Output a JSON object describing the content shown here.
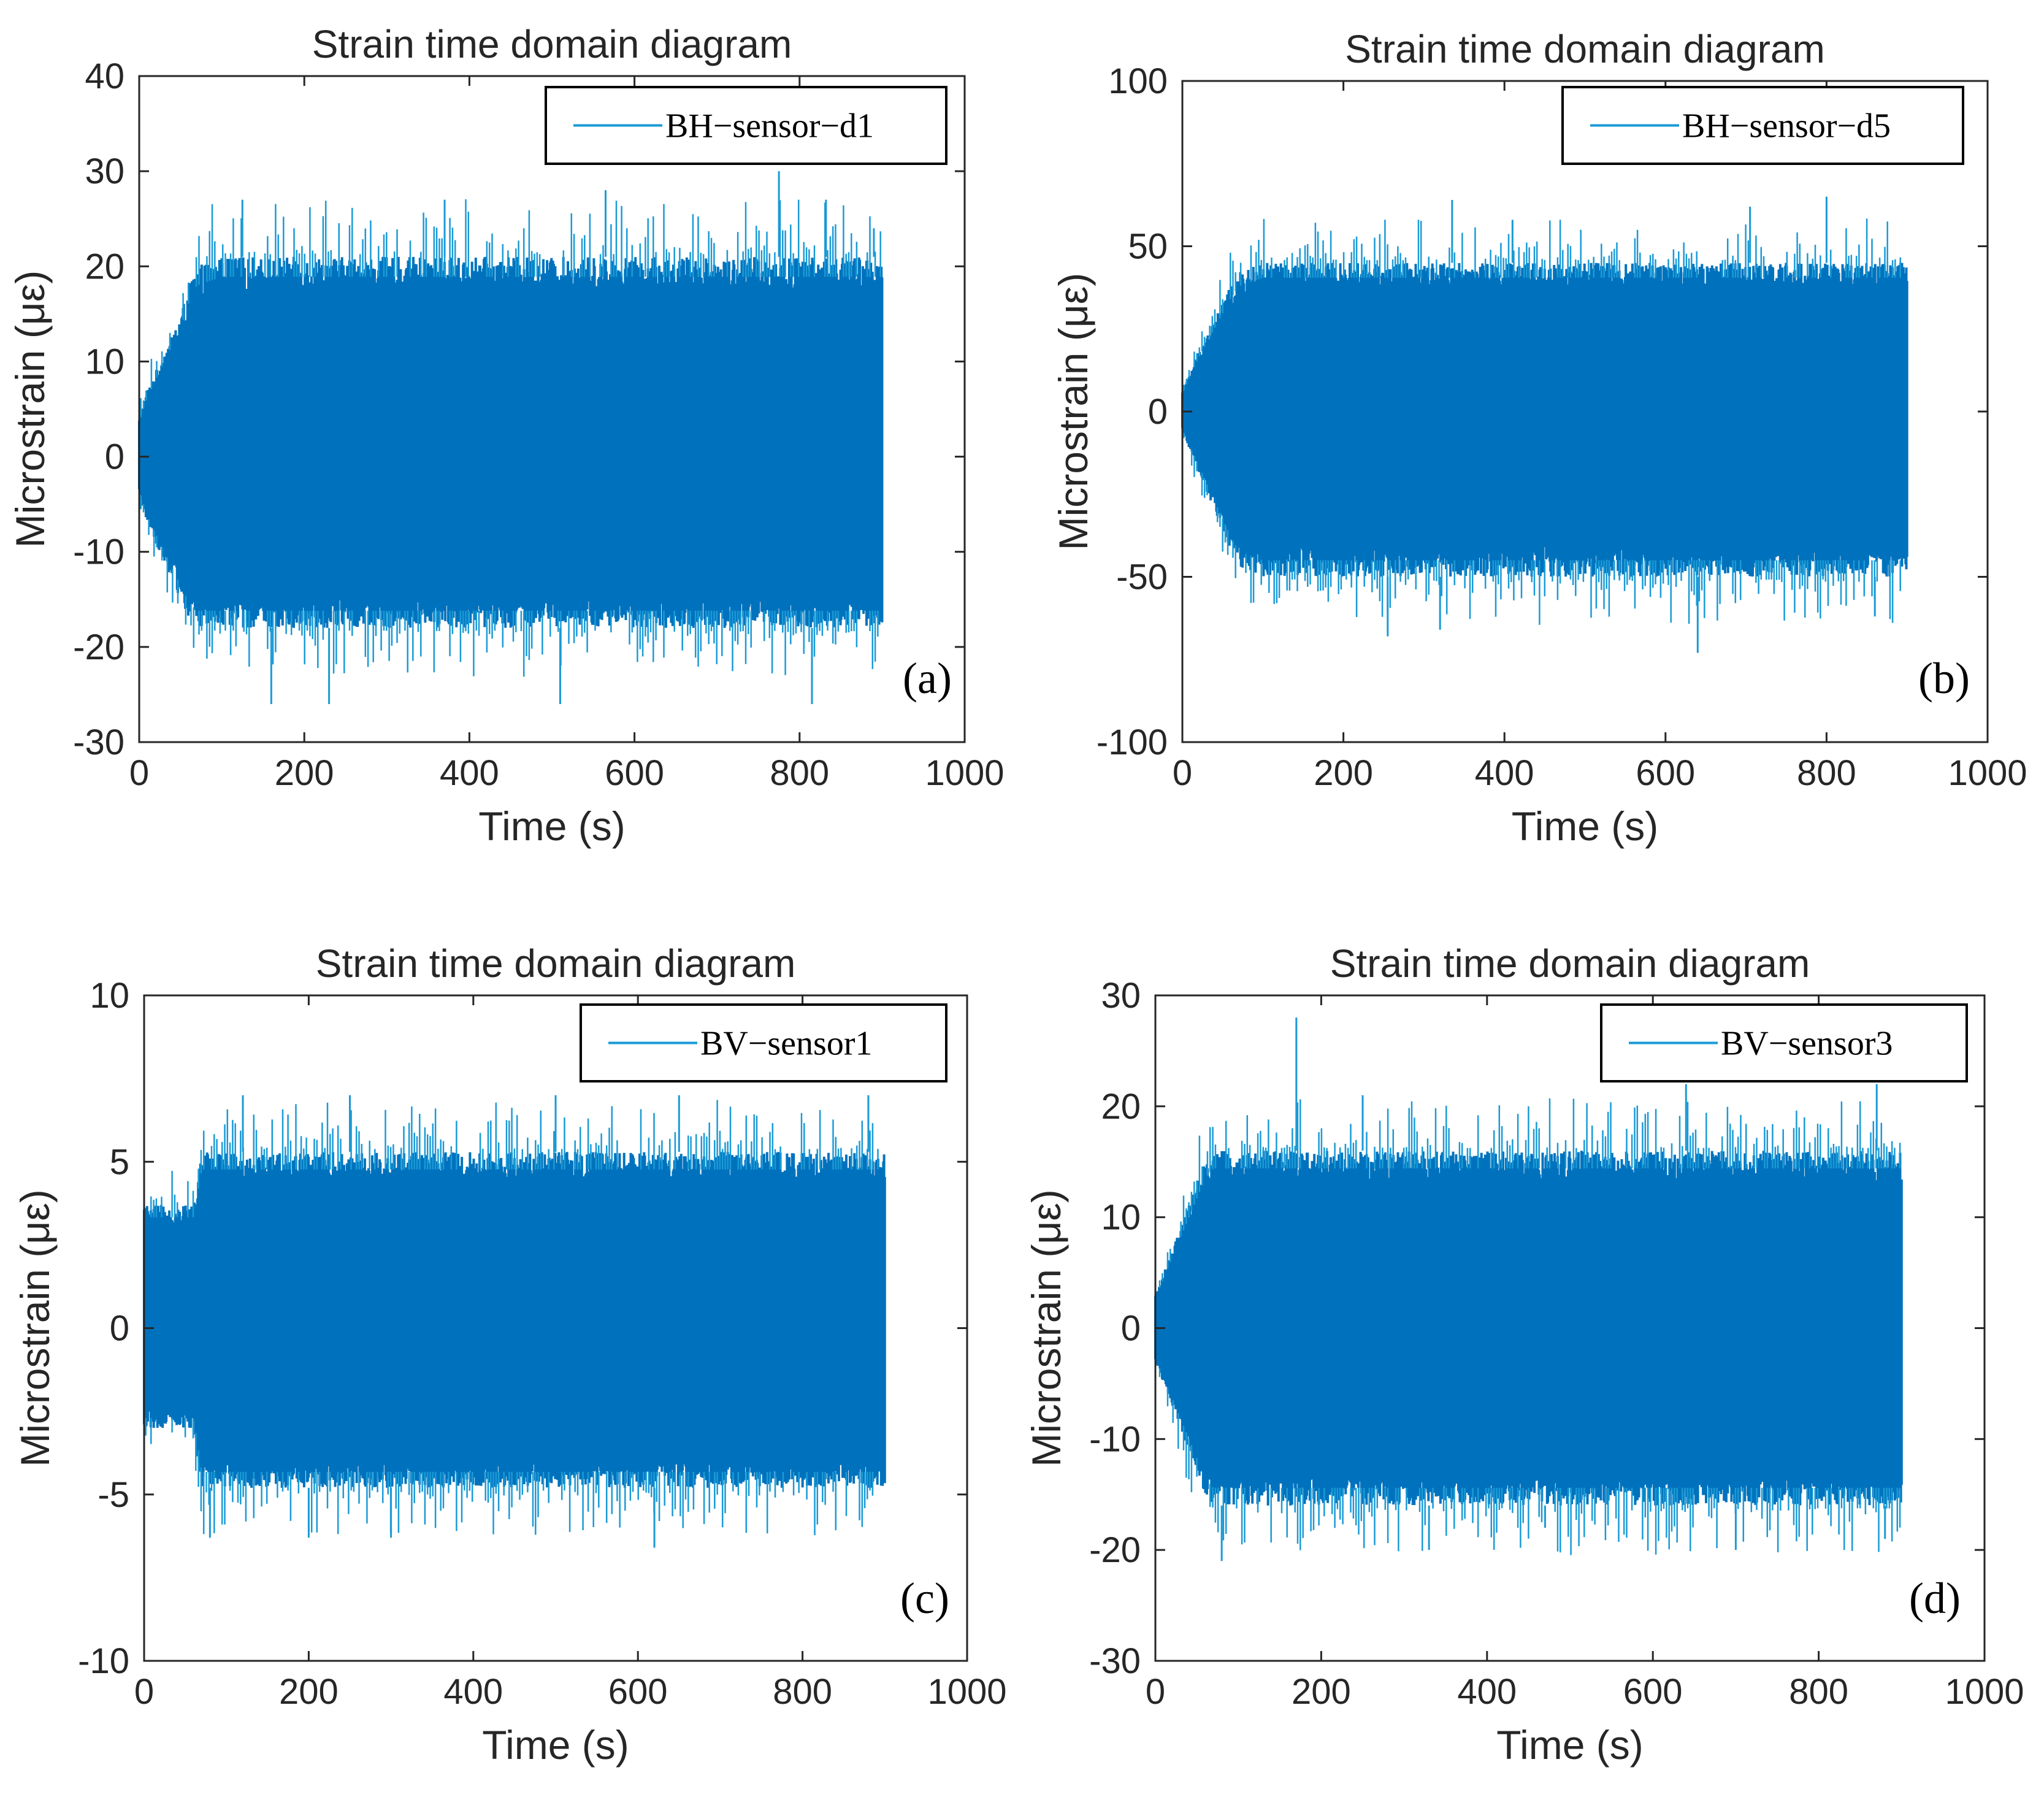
{
  "figure": {
    "colors": {
      "series": "#0072BD",
      "peak": "#1a9ad6",
      "axis": "#262626",
      "background": "#ffffff"
    }
  },
  "chart_data": [
    {
      "panel": "(a)",
      "type": "line",
      "title": "Strain time domain diagram",
      "xlabel": "Time (s)",
      "ylabel": "Microstrain (με)",
      "xlim": [
        0,
        1000
      ],
      "ylim": [
        -30,
        40
      ],
      "xticks": [
        "0",
        "200",
        "400",
        "600",
        "800",
        "1000"
      ],
      "yticks": [
        "-30",
        "-20",
        "-10",
        "0",
        "10",
        "20",
        "30",
        "40"
      ],
      "legend": "top-right",
      "series": [
        {
          "name": "BH−sensor−d1",
          "time_s": [
            0,
            10,
            20,
            30,
            40,
            50,
            60,
            70,
            100,
            200,
            300,
            400,
            500,
            600,
            700,
            800,
            900
          ],
          "upper_envelope": [
            4,
            7,
            9,
            11,
            13,
            15,
            18,
            20,
            21,
            21,
            21,
            21,
            21,
            21,
            21,
            21,
            21
          ],
          "lower_envelope": [
            -4,
            -7,
            -9,
            -11,
            -13,
            -15,
            -17,
            -18,
            -18,
            -18,
            -18,
            -18,
            -18,
            -18,
            -18,
            -18,
            -18
          ],
          "peaks": [
            [
              125,
              27
            ],
            [
              370,
              27
            ],
            [
              565,
              28
            ],
            [
              775,
              30
            ],
            [
              832,
              27
            ],
            [
              890,
              24
            ]
          ],
          "troughs": [
            [
              160,
              -26
            ],
            [
              230,
              -26
            ],
            [
              510,
              -26
            ],
            [
              815,
              -26
            ]
          ]
        }
      ]
    },
    {
      "panel": "(b)",
      "type": "line",
      "title": "Strain time domain diagram",
      "xlabel": "Time (s)",
      "ylabel": "Microstrain (με)",
      "xlim": [
        0,
        1000
      ],
      "ylim": [
        -100,
        100
      ],
      "xticks": [
        "0",
        "200",
        "400",
        "600",
        "800",
        "1000"
      ],
      "yticks": [
        "-100",
        "-50",
        "0",
        "50",
        "100"
      ],
      "legend": "top-right",
      "series": [
        {
          "name": "BH−sensor−d5",
          "time_s": [
            0,
            10,
            20,
            30,
            40,
            50,
            60,
            70,
            100,
            200,
            300,
            400,
            500,
            600,
            700,
            800,
            900
          ],
          "upper_envelope": [
            6,
            12,
            18,
            23,
            28,
            33,
            38,
            42,
            45,
            45,
            45,
            45,
            45,
            45,
            45,
            45,
            45
          ],
          "lower_envelope": [
            -6,
            -12,
            -18,
            -24,
            -30,
            -36,
            -42,
            -47,
            -50,
            -50,
            -50,
            -50,
            -50,
            -50,
            -50,
            -50,
            -50
          ],
          "peaks": [
            [
              335,
              64
            ],
            [
              410,
              58
            ],
            [
              705,
              62
            ],
            [
              800,
              65
            ]
          ],
          "troughs": [
            [
              255,
              -68
            ],
            [
              320,
              -66
            ],
            [
              640,
              -73
            ],
            [
              860,
              -62
            ]
          ]
        }
      ]
    },
    {
      "panel": "(c)",
      "type": "line",
      "title": "Strain time domain diagram",
      "xlabel": "Time (s)",
      "ylabel": "Microstrain (με)",
      "xlim": [
        0,
        1000
      ],
      "ylim": [
        -10,
        10
      ],
      "xticks": [
        "0",
        "200",
        "400",
        "600",
        "800",
        "1000"
      ],
      "yticks": [
        "-10",
        "-5",
        "0",
        "5",
        "10"
      ],
      "legend": "top-right",
      "series": [
        {
          "name": "BV−sensor1",
          "time_s": [
            0,
            60,
            70,
            900
          ],
          "upper_envelope": [
            3.7,
            3.7,
            5.3,
            5.3
          ],
          "lower_envelope": [
            -3.0,
            -3.0,
            -4.8,
            -4.8
          ],
          "peaks": [
            [
              120,
              7.0
            ],
            [
              250,
              7.0
            ],
            [
              500,
              7.0
            ],
            [
              650,
              7.0
            ],
            [
              880,
              7.0
            ]
          ],
          "troughs": [
            [
              80,
              -6.3
            ],
            [
              200,
              -6.3
            ],
            [
              300,
              -6.3
            ],
            [
              620,
              -6.6
            ]
          ]
        }
      ]
    },
    {
      "panel": "(d)",
      "type": "line",
      "title": "Strain time domain diagram",
      "xlabel": "Time (s)",
      "ylabel": "Microstrain (με)",
      "xlim": [
        0,
        1000
      ],
      "ylim": [
        -30,
        30
      ],
      "xticks": [
        "0",
        "200",
        "400",
        "600",
        "800",
        "1000"
      ],
      "yticks": [
        "-30",
        "-20",
        "-10",
        "0",
        "10",
        "20",
        "30"
      ],
      "legend": "top-right",
      "series": [
        {
          "name": "BV−sensor3",
          "time_s": [
            0,
            10,
            20,
            30,
            40,
            50,
            60,
            70,
            100,
            200,
            300,
            400,
            500,
            600,
            700,
            800,
            900
          ],
          "upper_envelope": [
            3,
            5,
            7,
            9,
            11,
            13,
            15,
            16,
            16,
            16,
            16,
            16,
            16,
            16,
            16,
            16,
            16
          ],
          "lower_envelope": [
            -3,
            -5,
            -7,
            -9,
            -11,
            -13,
            -15,
            -16,
            -16,
            -16,
            -16,
            -16,
            -16,
            -16,
            -16,
            -16,
            -16
          ],
          "peaks": [
            [
              170,
              28
            ],
            [
              250,
              21
            ],
            [
              640,
              22
            ],
            [
              870,
              22
            ]
          ],
          "troughs": [
            [
              80,
              -21
            ],
            [
              330,
              -20
            ],
            [
              470,
              -18
            ],
            [
              700,
              -20
            ],
            [
              880,
              -19
            ]
          ]
        }
      ]
    }
  ]
}
